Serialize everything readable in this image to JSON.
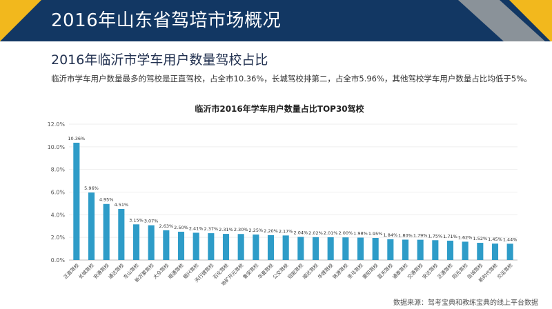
{
  "header": {
    "title": "2016年山东省驾培市场概况"
  },
  "section": {
    "subtitle": "2016年临沂市学车用户数量驾校占比",
    "description": "临沂市学车用户数量最多的驾校是正直驾校，占全市10.36%，长城驾校排第二，占全市5.96%，其他驾校学车用户数量占比均低于5%。"
  },
  "footer": {
    "source": "数据来源：驾考宝典和教练宝典的线上平台数据"
  },
  "colors": {
    "bar": "#2E9CC8",
    "header": "#123763",
    "accent_yellow": "#F2B81D",
    "accent_gray": "#8A9299"
  },
  "chart_data": {
    "type": "bar",
    "title": "临沂市2016年学车用户数量占比TOP30驾校",
    "xlabel": "",
    "ylabel": "",
    "ylim": [
      0,
      12
    ],
    "yticks": [
      0,
      2,
      4,
      6,
      8,
      10,
      12
    ],
    "ytick_labels": [
      "0.0%",
      "2.0%",
      "4.0%",
      "6.0%",
      "8.0%",
      "10.0%",
      "12.0%"
    ],
    "categories": [
      "正直驾校",
      "长城驾校",
      "安通驾校",
      "通达驾校",
      "东山驾校",
      "新沂蒙驾校",
      "大众驾校",
      "顺通驾校",
      "银兴驾校",
      "天行健驾校",
      "石化驾校",
      "地矿开元驾校",
      "鲁安驾校",
      "华夏驾校",
      "公交驾校",
      "冠能驾校",
      "顺达驾校",
      "华健驾校",
      "铭源驾校",
      "圣马驾校",
      "豪阳驾校",
      "蓝天驾校",
      "通泰驾校",
      "交通驾校",
      "安达驾校",
      "正通驾校",
      "阳光驾校",
      "信诚驾校",
      "新时代驾校",
      "交运驾校"
    ],
    "values": [
      10.36,
      5.96,
      4.95,
      4.51,
      3.15,
      3.07,
      2.63,
      2.5,
      2.41,
      2.37,
      2.31,
      2.3,
      2.25,
      2.2,
      2.17,
      2.04,
      2.02,
      2.01,
      2.0,
      1.98,
      1.95,
      1.84,
      1.8,
      1.79,
      1.75,
      1.71,
      1.62,
      1.52,
      1.45,
      1.44
    ],
    "value_labels": [
      "10.36%",
      "5.96%",
      "4.95%",
      "4.51%",
      "3.15%",
      "3.07%",
      "2.63%",
      "2.50%",
      "2.41%",
      "2.37%",
      "2.31%",
      "2.30%",
      "2.25%",
      "2.20%",
      "2.17%",
      "2.04%",
      "2.02%",
      "2.01%",
      "2.00%",
      "1.98%",
      "1.95%",
      "1.84%",
      "1.80%",
      "1.79%",
      "1.75%",
      "1.71%",
      "1.62%",
      "1.52%",
      "1.45%",
      "1.44%"
    ]
  }
}
